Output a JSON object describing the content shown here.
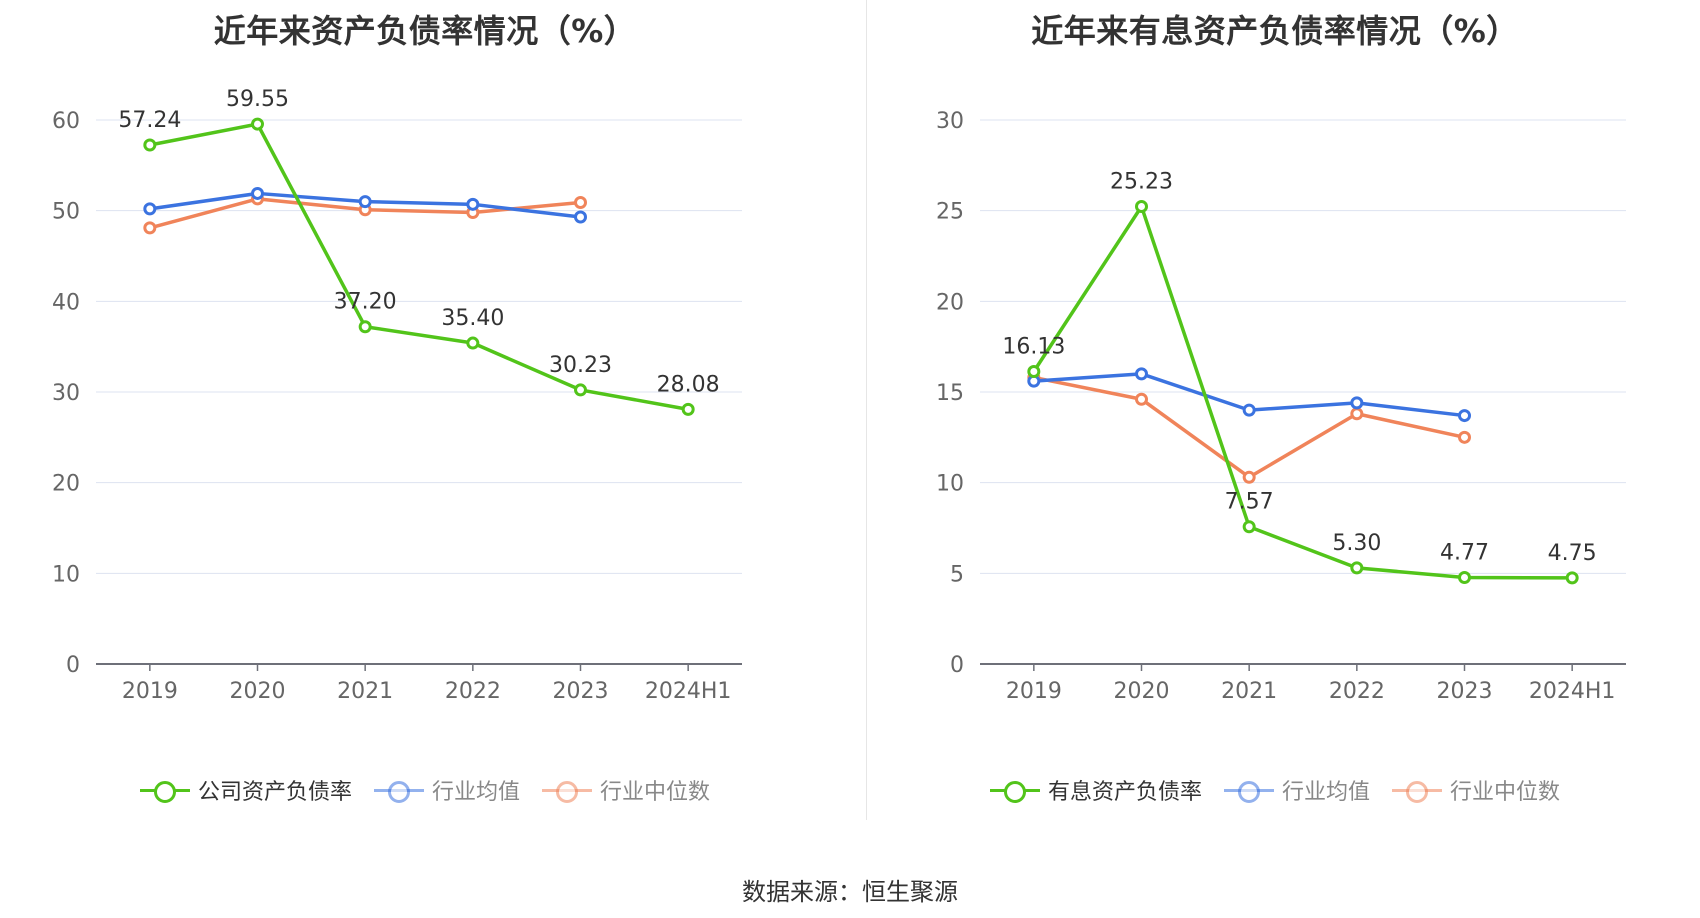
{
  "source": "数据来源：恒生聚源",
  "colors": {
    "company": "#52c41a",
    "avg": "#3b73e0",
    "median": "#f0845a"
  },
  "chart_data": [
    {
      "type": "line",
      "title": "近年来资产负债率情况（%）",
      "categories": [
        "2019",
        "2020",
        "2021",
        "2022",
        "2023",
        "2024H1"
      ],
      "ylim": [
        0,
        60
      ],
      "yticks": [
        0,
        10,
        20,
        30,
        40,
        50,
        60
      ],
      "grid": true,
      "legend_position": "bottom",
      "series": [
        {
          "name": "公司资产负债率",
          "color": "#52c41a",
          "values": [
            57.24,
            59.55,
            37.2,
            35.4,
            30.23,
            28.08
          ],
          "labels": [
            "57.24",
            "59.55",
            "37.20",
            "35.40",
            "30.23",
            "28.08"
          ]
        },
        {
          "name": "行业均值",
          "color": "#3b73e0",
          "values": [
            50.2,
            51.9,
            51.0,
            50.7,
            49.3,
            null
          ]
        },
        {
          "name": "行业中位数",
          "color": "#f0845a",
          "values": [
            48.1,
            51.3,
            50.1,
            49.8,
            50.9,
            null
          ]
        }
      ]
    },
    {
      "type": "line",
      "title": "近年来有息资产负债率情况（%）",
      "categories": [
        "2019",
        "2020",
        "2021",
        "2022",
        "2023",
        "2024H1"
      ],
      "ylim": [
        0,
        30
      ],
      "yticks": [
        0,
        5,
        10,
        15,
        20,
        25,
        30
      ],
      "grid": true,
      "legend_position": "bottom",
      "series": [
        {
          "name": "有息资产负债率",
          "color": "#52c41a",
          "values": [
            16.13,
            25.23,
            7.57,
            5.3,
            4.77,
            4.75
          ],
          "labels": [
            "16.13",
            "25.23",
            "7.57",
            "5.30",
            "4.77",
            "4.75"
          ]
        },
        {
          "name": "行业均值",
          "color": "#3b73e0",
          "values": [
            15.6,
            16.0,
            14.0,
            14.4,
            13.7,
            null
          ]
        },
        {
          "name": "行业中位数",
          "color": "#f0845a",
          "values": [
            15.8,
            14.6,
            10.3,
            13.8,
            12.5,
            null
          ]
        }
      ]
    }
  ]
}
